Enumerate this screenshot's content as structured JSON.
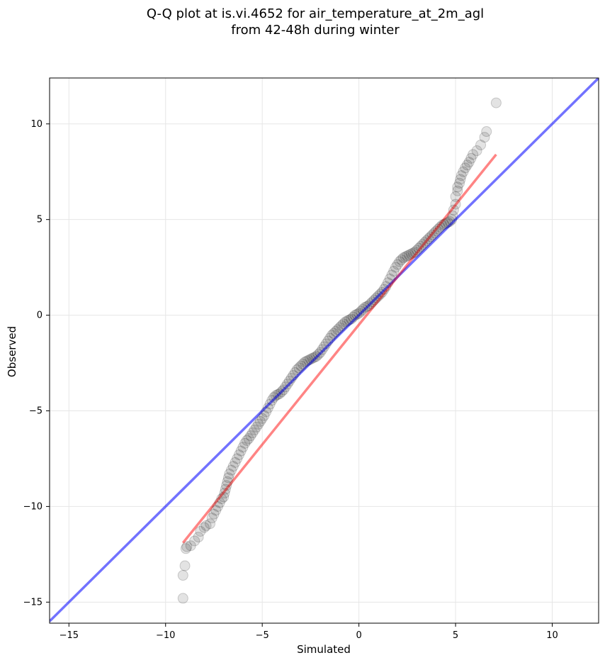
{
  "chart_data": {
    "type": "scatter",
    "title": [
      "Q-Q plot at is.vi.4652 for air_temperature_at_2m_agl",
      "from 42-48h during winter"
    ],
    "xlabel": "Simulated",
    "ylabel": "Observed",
    "xlim": [
      -16,
      12.4
    ],
    "ylim": [
      -16.1,
      12.4
    ],
    "xticks": [
      -15,
      -10,
      -5,
      0,
      5,
      10
    ],
    "yticks": [
      -15,
      -10,
      -5,
      0,
      5,
      10
    ],
    "xtick_labels": [
      "−15",
      "−10",
      "−5",
      "0",
      "5",
      "10"
    ],
    "ytick_labels": [
      "−15",
      "−10",
      "−5",
      "0",
      "5",
      "10"
    ],
    "grid": true,
    "series": [
      {
        "kind": "scatter",
        "color": "#000000",
        "x": [
          -9.1,
          -9.1,
          -9.0,
          -8.95,
          -8.9,
          -8.7,
          -8.5,
          -8.3,
          -8.2,
          -8.0,
          -7.9,
          -7.7,
          -7.6,
          -7.5,
          -7.4,
          -7.3,
          -7.2,
          -7.1,
          -7.0,
          -6.95,
          -6.9,
          -6.85,
          -6.8,
          -6.75,
          -6.7,
          -6.6,
          -6.5,
          -6.4,
          -6.3,
          -6.2,
          -6.1,
          -6.0,
          -5.9,
          -5.8,
          -5.7,
          -5.6,
          -5.5,
          -5.4,
          -5.3,
          -5.2,
          -5.1,
          -5.0,
          -4.9,
          -4.8,
          -4.7,
          -4.6,
          -4.5,
          -4.4,
          -4.3,
          -4.2,
          -4.1,
          -4.0,
          -3.9,
          -3.8,
          -3.7,
          -3.6,
          -3.5,
          -3.4,
          -3.3,
          -3.2,
          -3.1,
          -3.0,
          -2.9,
          -2.8,
          -2.7,
          -2.6,
          -2.5,
          -2.4,
          -2.3,
          -2.2,
          -2.1,
          -2.0,
          -1.9,
          -1.8,
          -1.7,
          -1.6,
          -1.5,
          -1.4,
          -1.3,
          -1.2,
          -1.1,
          -1.0,
          -0.9,
          -0.8,
          -0.7,
          -0.6,
          -0.5,
          -0.4,
          -0.3,
          -0.2,
          -0.1,
          0.0,
          0.1,
          0.2,
          0.3,
          0.4,
          0.5,
          0.6,
          0.7,
          0.8,
          0.9,
          1.0,
          1.1,
          1.2,
          1.3,
          1.4,
          1.5,
          1.6,
          1.7,
          1.8,
          1.9,
          2.0,
          2.1,
          2.2,
          2.3,
          2.4,
          2.5,
          2.6,
          2.7,
          2.8,
          2.9,
          3.0,
          3.1,
          3.2,
          3.3,
          3.4,
          3.5,
          3.6,
          3.7,
          3.8,
          3.9,
          4.0,
          4.1,
          4.2,
          4.3,
          4.4,
          4.5,
          4.6,
          4.7,
          4.8,
          4.85,
          4.9,
          5.0,
          5.0,
          5.1,
          5.1,
          5.2,
          5.25,
          5.3,
          5.4,
          5.5,
          5.6,
          5.7,
          5.8,
          5.9,
          6.1,
          6.3,
          6.5,
          6.6,
          7.1
        ],
        "y": [
          -14.8,
          -13.6,
          -13.1,
          -12.2,
          -12.1,
          -12.05,
          -11.8,
          -11.6,
          -11.3,
          -11.1,
          -11.0,
          -10.9,
          -10.6,
          -10.4,
          -10.2,
          -10.0,
          -9.8,
          -9.6,
          -9.5,
          -9.3,
          -9.1,
          -8.9,
          -8.7,
          -8.5,
          -8.3,
          -8.1,
          -7.9,
          -7.7,
          -7.5,
          -7.3,
          -7.1,
          -6.9,
          -6.7,
          -6.55,
          -6.45,
          -6.3,
          -6.15,
          -6.0,
          -5.85,
          -5.7,
          -5.55,
          -5.4,
          -5.25,
          -5.05,
          -4.85,
          -4.65,
          -4.45,
          -4.3,
          -4.2,
          -4.15,
          -4.1,
          -4.0,
          -3.9,
          -3.75,
          -3.6,
          -3.45,
          -3.3,
          -3.15,
          -3.0,
          -2.85,
          -2.75,
          -2.65,
          -2.55,
          -2.45,
          -2.4,
          -2.35,
          -2.3,
          -2.25,
          -2.2,
          -2.15,
          -2.05,
          -1.95,
          -1.8,
          -1.65,
          -1.5,
          -1.35,
          -1.2,
          -1.05,
          -0.95,
          -0.85,
          -0.75,
          -0.65,
          -0.55,
          -0.45,
          -0.35,
          -0.3,
          -0.25,
          -0.2,
          -0.1,
          0.0,
          0.05,
          0.1,
          0.2,
          0.3,
          0.4,
          0.45,
          0.5,
          0.6,
          0.7,
          0.8,
          0.9,
          1.0,
          1.1,
          1.2,
          1.35,
          1.5,
          1.7,
          1.9,
          2.1,
          2.3,
          2.5,
          2.65,
          2.8,
          2.9,
          3.0,
          3.05,
          3.1,
          3.15,
          3.2,
          3.25,
          3.3,
          3.4,
          3.5,
          3.6,
          3.7,
          3.8,
          3.9,
          4.0,
          4.1,
          4.2,
          4.3,
          4.4,
          4.5,
          4.6,
          4.7,
          4.75,
          4.8,
          4.85,
          4.9,
          5.0,
          5.2,
          5.5,
          5.8,
          6.2,
          6.5,
          6.7,
          6.9,
          7.1,
          7.3,
          7.5,
          7.7,
          7.85,
          8.0,
          8.2,
          8.4,
          8.6,
          8.9,
          9.3,
          9.6,
          11.1
        ]
      },
      {
        "kind": "line",
        "color": "#0000ff",
        "x": [
          -16,
          12.4
        ],
        "y": [
          -16,
          12.4
        ]
      },
      {
        "kind": "line",
        "color": "#ff0000",
        "x": [
          -9.1,
          7.1
        ],
        "y": [
          -11.9,
          8.4
        ]
      }
    ]
  }
}
